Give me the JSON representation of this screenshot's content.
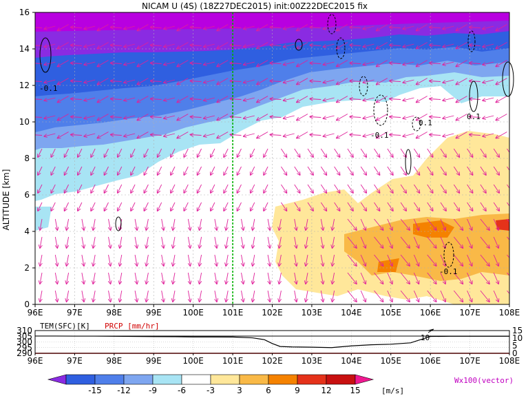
{
  "title": "NICAM U (4S) (18Z27DEC2015) init:00Z22DEC2015 fix",
  "main_chart": {
    "type": "heatmap",
    "ylabel": "ALTITUDE [km]",
    "xlim": [
      96,
      108
    ],
    "ylim": [
      0,
      16
    ],
    "x_ticks": [
      "96E",
      "97E",
      "98E",
      "99E",
      "100E",
      "101E",
      "102E",
      "103E",
      "104E",
      "105E",
      "106E",
      "107E",
      "108E"
    ],
    "y_ticks": [
      "0",
      "2",
      "4",
      "6",
      "8",
      "10",
      "12",
      "14",
      "16"
    ],
    "marker_longitude": 101,
    "contour_labels": [
      "-0.1",
      "-0.1",
      "-0.1",
      "0.1",
      "0.1",
      "-0.1",
      "-0.1"
    ],
    "grid": true
  },
  "sub_chart": {
    "type": "line",
    "series_labels": [
      "TEM(SFC)[K]",
      "PRCP [mm/hr]"
    ],
    "left_ticks": [
      "310",
      "305",
      "300",
      "295",
      "290"
    ],
    "right_ticks": [
      "15",
      "10",
      "5",
      "0"
    ],
    "x_ticks": [
      "96E",
      "97E",
      "98E",
      "99E",
      "100E",
      "101E",
      "102E",
      "103E",
      "104E",
      "105E",
      "106E",
      "107E",
      "108E"
    ],
    "tem_line": {
      "x": [
        96,
        96.5,
        97,
        97.5,
        98,
        98.5,
        99,
        99.5,
        100,
        100.5,
        101,
        101.5,
        101.8,
        102,
        102.2,
        102.5,
        103,
        103.5,
        104,
        104.5,
        105,
        105.5,
        106,
        106.5,
        107,
        107.5,
        108
      ],
      "y": [
        305.2,
        305.2,
        305.1,
        305.1,
        305.0,
        304.8,
        304.7,
        304.6,
        304.4,
        304.4,
        304.3,
        303.6,
        302.0,
        298.6,
        296.0,
        295.6,
        295.4,
        295.0,
        296.5,
        297.5,
        298.0,
        299.2,
        304.8,
        305.0,
        305.0,
        305.0,
        305.0
      ]
    },
    "prcp_value": 0,
    "annotation": "10"
  },
  "colorbar": {
    "labels": [
      "-15",
      "-12",
      "-9",
      "-6",
      "-3",
      "3",
      "6",
      "9",
      "12",
      "15"
    ],
    "colors": [
      "#8a2be2",
      "#2f5fe0",
      "#4f7fea",
      "#7ea6f0",
      "#a8e4f4",
      "#ffffff",
      "#ffe79a",
      "#f9b947",
      "#f58200",
      "#e5321a",
      "#c81010",
      "#f01890"
    ],
    "unit": "[m/s]",
    "vector_note": "Wx100(vector)"
  }
}
